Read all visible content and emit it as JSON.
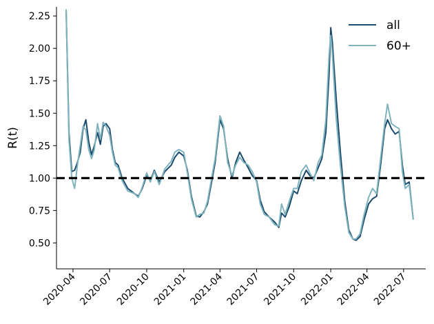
{
  "chart_data": {
    "type": "line",
    "title": "",
    "xlabel": "",
    "ylabel": "R(t)",
    "ylim": [
      0.3,
      2.32
    ],
    "xlim": [
      "2020-02-20",
      "2022-08-25"
    ],
    "yticks": [
      0.5,
      0.75,
      1.0,
      1.25,
      1.5,
      1.75,
      2.0,
      2.25
    ],
    "ytick_labels": [
      "0.50",
      "0.75",
      "1.00",
      "1.25",
      "1.50",
      "1.75",
      "2.00",
      "2.25"
    ],
    "xticks": [
      "2020-04-01",
      "2020-07-01",
      "2020-10-01",
      "2021-01-01",
      "2021-04-01",
      "2021-07-01",
      "2021-10-01",
      "2022-01-01",
      "2022-04-01",
      "2022-07-01"
    ],
    "xtick_labels": [
      "2020-04",
      "2020-07",
      "2020-10",
      "2021-01",
      "2021-04",
      "2021-07",
      "2021-10",
      "2022-01",
      "2022-04",
      "2022-07"
    ],
    "grid": false,
    "legend": "top-right",
    "reference_line": {
      "y": 1.0,
      "style": "dashed",
      "color": "#000000"
    },
    "series": [
      {
        "name": "all",
        "color": "#1a4a6e",
        "points": [
          [
            "2020-03-15",
            2.3
          ],
          [
            "2020-03-22",
            1.35
          ],
          [
            "2020-03-29",
            1.05
          ],
          [
            "2020-04-05",
            1.06
          ],
          [
            "2020-04-12",
            1.12
          ],
          [
            "2020-04-19",
            1.2
          ],
          [
            "2020-04-26",
            1.38
          ],
          [
            "2020-05-03",
            1.45
          ],
          [
            "2020-05-10",
            1.28
          ],
          [
            "2020-05-17",
            1.18
          ],
          [
            "2020-05-24",
            1.25
          ],
          [
            "2020-06-01",
            1.35
          ],
          [
            "2020-06-08",
            1.26
          ],
          [
            "2020-06-15",
            1.4
          ],
          [
            "2020-06-22",
            1.42
          ],
          [
            "2020-07-01",
            1.38
          ],
          [
            "2020-07-08",
            1.22
          ],
          [
            "2020-07-15",
            1.12
          ],
          [
            "2020-07-22",
            1.1
          ],
          [
            "2020-08-01",
            1.0
          ],
          [
            "2020-08-15",
            0.92
          ],
          [
            "2020-09-01",
            0.88
          ],
          [
            "2020-09-10",
            0.86
          ],
          [
            "2020-09-20",
            0.92
          ],
          [
            "2020-10-01",
            1.02
          ],
          [
            "2020-10-10",
            0.98
          ],
          [
            "2020-10-20",
            1.06
          ],
          [
            "2020-11-01",
            0.97
          ],
          [
            "2020-11-15",
            1.05
          ],
          [
            "2020-12-01",
            1.1
          ],
          [
            "2020-12-10",
            1.16
          ],
          [
            "2020-12-20",
            1.2
          ],
          [
            "2021-01-01",
            1.17
          ],
          [
            "2021-01-10",
            1.06
          ],
          [
            "2021-01-20",
            0.86
          ],
          [
            "2021-02-01",
            0.71
          ],
          [
            "2021-02-10",
            0.7
          ],
          [
            "2021-02-20",
            0.74
          ],
          [
            "2021-03-01",
            0.8
          ],
          [
            "2021-03-10",
            0.95
          ],
          [
            "2021-03-20",
            1.12
          ],
          [
            "2021-04-01",
            1.45
          ],
          [
            "2021-04-10",
            1.38
          ],
          [
            "2021-04-20",
            1.15
          ],
          [
            "2021-05-01",
            1.0
          ],
          [
            "2021-05-10",
            1.12
          ],
          [
            "2021-05-20",
            1.2
          ],
          [
            "2021-05-30",
            1.14
          ],
          [
            "2021-06-10",
            1.08
          ],
          [
            "2021-06-20",
            1.02
          ],
          [
            "2021-07-01",
            0.98
          ],
          [
            "2021-07-10",
            0.83
          ],
          [
            "2021-07-20",
            0.74
          ],
          [
            "2021-08-01",
            0.7
          ],
          [
            "2021-08-15",
            0.66
          ],
          [
            "2021-08-25",
            0.62
          ],
          [
            "2021-09-01",
            0.73
          ],
          [
            "2021-09-10",
            0.7
          ],
          [
            "2021-09-20",
            0.78
          ],
          [
            "2021-10-01",
            0.9
          ],
          [
            "2021-10-10",
            0.88
          ],
          [
            "2021-10-20",
            0.98
          ],
          [
            "2021-11-01",
            1.06
          ],
          [
            "2021-11-10",
            1.02
          ],
          [
            "2021-11-20",
            1.0
          ],
          [
            "2021-12-01",
            1.08
          ],
          [
            "2021-12-10",
            1.15
          ],
          [
            "2021-12-20",
            1.35
          ],
          [
            "2021-12-28",
            1.8
          ],
          [
            "2022-01-01",
            2.16
          ],
          [
            "2022-01-05",
            2.05
          ],
          [
            "2022-01-15",
            1.6
          ],
          [
            "2022-01-25",
            1.2
          ],
          [
            "2022-02-05",
            0.82
          ],
          [
            "2022-02-15",
            0.6
          ],
          [
            "2022-02-25",
            0.53
          ],
          [
            "2022-03-05",
            0.52
          ],
          [
            "2022-03-15",
            0.55
          ],
          [
            "2022-03-25",
            0.68
          ],
          [
            "2022-04-05",
            0.8
          ],
          [
            "2022-04-15",
            0.84
          ],
          [
            "2022-04-25",
            0.86
          ],
          [
            "2022-05-05",
            1.1
          ],
          [
            "2022-05-15",
            1.38
          ],
          [
            "2022-05-22",
            1.45
          ],
          [
            "2022-06-01",
            1.38
          ],
          [
            "2022-06-10",
            1.34
          ],
          [
            "2022-06-20",
            1.36
          ],
          [
            "2022-06-28",
            1.1
          ],
          [
            "2022-07-05",
            0.95
          ],
          [
            "2022-07-15",
            0.97
          ],
          [
            "2022-07-25",
            0.68
          ]
        ]
      },
      {
        "name": "60+",
        "color": "#7fb3bd",
        "points": [
          [
            "2020-03-15",
            2.3
          ],
          [
            "2020-03-22",
            1.3
          ],
          [
            "2020-03-29",
            1.0
          ],
          [
            "2020-04-05",
            0.92
          ],
          [
            "2020-04-12",
            1.1
          ],
          [
            "2020-04-19",
            1.25
          ],
          [
            "2020-04-26",
            1.4
          ],
          [
            "2020-05-03",
            1.37
          ],
          [
            "2020-05-10",
            1.22
          ],
          [
            "2020-05-17",
            1.15
          ],
          [
            "2020-05-24",
            1.22
          ],
          [
            "2020-06-01",
            1.42
          ],
          [
            "2020-06-08",
            1.3
          ],
          [
            "2020-06-15",
            1.43
          ],
          [
            "2020-06-22",
            1.4
          ],
          [
            "2020-07-01",
            1.33
          ],
          [
            "2020-07-08",
            1.2
          ],
          [
            "2020-07-15",
            1.1
          ],
          [
            "2020-07-22",
            1.08
          ],
          [
            "2020-08-01",
            0.98
          ],
          [
            "2020-08-15",
            0.9
          ],
          [
            "2020-09-01",
            0.88
          ],
          [
            "2020-09-10",
            0.85
          ],
          [
            "2020-09-20",
            0.93
          ],
          [
            "2020-10-01",
            1.04
          ],
          [
            "2020-10-10",
            0.97
          ],
          [
            "2020-10-20",
            1.05
          ],
          [
            "2020-11-01",
            0.95
          ],
          [
            "2020-11-15",
            1.07
          ],
          [
            "2020-12-01",
            1.13
          ],
          [
            "2020-12-10",
            1.2
          ],
          [
            "2020-12-20",
            1.22
          ],
          [
            "2021-01-01",
            1.2
          ],
          [
            "2021-01-10",
            1.04
          ],
          [
            "2021-01-20",
            0.84
          ],
          [
            "2021-02-01",
            0.7
          ],
          [
            "2021-02-10",
            0.72
          ],
          [
            "2021-02-20",
            0.73
          ],
          [
            "2021-03-01",
            0.82
          ],
          [
            "2021-03-10",
            0.98
          ],
          [
            "2021-03-20",
            1.15
          ],
          [
            "2021-04-01",
            1.48
          ],
          [
            "2021-04-10",
            1.4
          ],
          [
            "2021-04-20",
            1.12
          ],
          [
            "2021-05-01",
            1.02
          ],
          [
            "2021-05-10",
            1.1
          ],
          [
            "2021-05-20",
            1.16
          ],
          [
            "2021-05-30",
            1.12
          ],
          [
            "2021-06-10",
            1.1
          ],
          [
            "2021-06-20",
            1.05
          ],
          [
            "2021-07-01",
            0.97
          ],
          [
            "2021-07-10",
            0.8
          ],
          [
            "2021-07-20",
            0.72
          ],
          [
            "2021-08-01",
            0.7
          ],
          [
            "2021-08-15",
            0.64
          ],
          [
            "2021-08-25",
            0.63
          ],
          [
            "2021-09-01",
            0.8
          ],
          [
            "2021-09-10",
            0.72
          ],
          [
            "2021-09-20",
            0.82
          ],
          [
            "2021-10-01",
            0.92
          ],
          [
            "2021-10-10",
            0.92
          ],
          [
            "2021-10-20",
            1.05
          ],
          [
            "2021-11-01",
            1.1
          ],
          [
            "2021-11-10",
            1.04
          ],
          [
            "2021-11-20",
            0.98
          ],
          [
            "2021-12-01",
            1.12
          ],
          [
            "2021-12-10",
            1.18
          ],
          [
            "2021-12-20",
            1.45
          ],
          [
            "2021-12-28",
            1.95
          ],
          [
            "2022-01-01",
            2.1
          ],
          [
            "2022-01-05",
            1.96
          ],
          [
            "2022-01-15",
            1.45
          ],
          [
            "2022-01-25",
            1.1
          ],
          [
            "2022-02-05",
            0.78
          ],
          [
            "2022-02-15",
            0.58
          ],
          [
            "2022-02-25",
            0.53
          ],
          [
            "2022-03-05",
            0.53
          ],
          [
            "2022-03-15",
            0.57
          ],
          [
            "2022-03-25",
            0.72
          ],
          [
            "2022-04-05",
            0.85
          ],
          [
            "2022-04-15",
            0.92
          ],
          [
            "2022-04-25",
            0.88
          ],
          [
            "2022-05-05",
            1.15
          ],
          [
            "2022-05-15",
            1.42
          ],
          [
            "2022-05-22",
            1.57
          ],
          [
            "2022-06-01",
            1.42
          ],
          [
            "2022-06-10",
            1.4
          ],
          [
            "2022-06-20",
            1.38
          ],
          [
            "2022-06-28",
            1.05
          ],
          [
            "2022-07-05",
            0.92
          ],
          [
            "2022-07-15",
            0.95
          ],
          [
            "2022-07-25",
            0.68
          ]
        ]
      }
    ]
  }
}
